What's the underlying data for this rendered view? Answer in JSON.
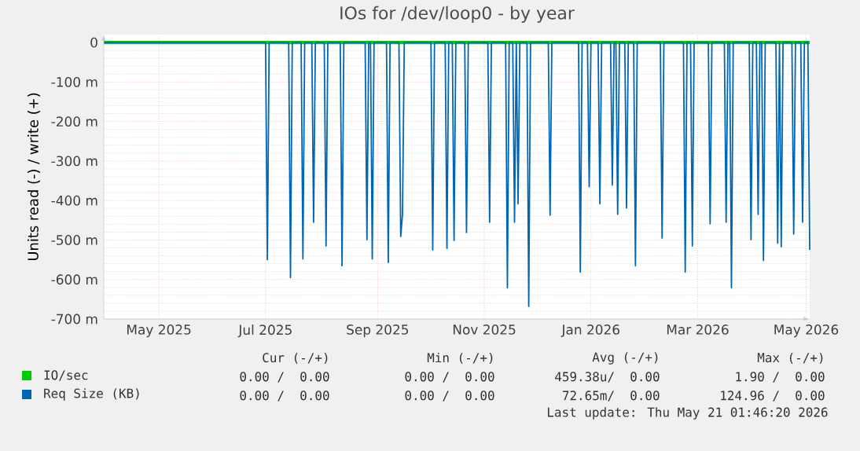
{
  "chart_data": {
    "type": "line",
    "title": "IOs for /dev/loop0 - by year",
    "ylabel": "Units read (-) / write (+)",
    "xlim": [
      "2025-04-19",
      "2026-05-21"
    ],
    "xticks": [
      {
        "value": "2025-05-20",
        "label": "May 2025"
      },
      {
        "value": "2025-07-19",
        "label": "Jul 2025"
      },
      {
        "value": "2025-09-20",
        "label": "Sep 2025"
      },
      {
        "value": "2025-11-19",
        "label": "Nov 2025"
      },
      {
        "value": "2026-01-18",
        "label": "Jan 2026"
      },
      {
        "value": "2026-03-19",
        "label": "Mar 2026"
      },
      {
        "value": "2026-05-19",
        "label": "May 2026"
      }
    ],
    "ylim": [
      -700,
      20
    ],
    "yticks": [
      {
        "value": 0,
        "label": "0"
      },
      {
        "value": -100,
        "label": "-100 m"
      },
      {
        "value": -200,
        "label": "-200 m"
      },
      {
        "value": -300,
        "label": "-300 m"
      },
      {
        "value": -400,
        "label": "-400 m"
      },
      {
        "value": -500,
        "label": "-500 m"
      },
      {
        "value": -600,
        "label": "-600 m"
      },
      {
        "value": -700,
        "label": "-700 m"
      }
    ],
    "grid": true,
    "legend": "bottom",
    "series": [
      {
        "name": "IO/sec",
        "color": "#00cc00",
        "x": [
          "2025-04-19",
          "2026-05-21"
        ],
        "values": [
          0,
          0
        ]
      },
      {
        "name": "Req Size (KB)",
        "color": "#0066b3",
        "x": [
          "2025-04-19",
          "2025-07-19",
          "2025-07-20",
          "2025-07-21",
          "2025-08-01",
          "2025-08-02",
          "2025-08-03",
          "2025-08-08",
          "2025-08-09",
          "2025-08-10",
          "2025-08-14",
          "2025-08-15",
          "2025-08-16",
          "2025-08-21",
          "2025-08-22",
          "2025-08-23",
          "2025-08-30",
          "2025-08-31",
          "2025-09-01",
          "2025-09-13",
          "2025-09-14",
          "2025-09-15",
          "2025-09-16",
          "2025-09-17",
          "2025-09-18",
          "2025-09-25",
          "2025-09-26",
          "2025-09-27",
          "2025-10-02",
          "2025-10-03",
          "2025-10-04",
          "2025-10-05",
          "2025-10-20",
          "2025-10-21",
          "2025-10-22",
          "2025-10-28",
          "2025-10-29",
          "2025-10-30",
          "2025-11-01",
          "2025-11-02",
          "2025-11-03",
          "2025-11-08",
          "2025-11-09",
          "2025-11-10",
          "2025-11-21",
          "2025-11-22",
          "2025-11-23",
          "2025-12-01",
          "2025-12-02",
          "2025-12-03",
          "2025-12-05",
          "2025-12-06",
          "2025-12-07",
          "2025-12-08",
          "2025-12-09",
          "2025-12-13",
          "2025-12-14",
          "2025-12-15",
          "2025-12-25",
          "2025-12-26",
          "2025-12-27",
          "2026-01-11",
          "2026-01-12",
          "2026-01-13",
          "2026-01-16",
          "2026-01-17",
          "2026-01-18",
          "2026-01-22",
          "2026-01-23",
          "2026-01-24",
          "2026-01-29",
          "2026-01-30",
          "2026-01-31",
          "2026-02-01",
          "2026-02-02",
          "2026-02-03",
          "2026-02-06",
          "2026-02-07",
          "2026-02-08",
          "2026-02-11",
          "2026-02-12",
          "2026-02-13",
          "2026-02-26",
          "2026-02-27",
          "2026-02-28",
          "2026-03-11",
          "2026-03-12",
          "2026-03-13",
          "2026-03-15",
          "2026-03-16",
          "2026-03-17",
          "2026-03-25",
          "2026-03-26",
          "2026-03-27",
          "2026-04-03",
          "2026-04-04",
          "2026-04-05",
          "2026-04-06",
          "2026-04-07",
          "2026-04-08",
          "2026-04-17",
          "2026-04-18",
          "2026-04-19",
          "2026-04-21",
          "2026-04-22",
          "2026-04-23",
          "2026-04-24",
          "2026-04-25",
          "2026-04-26",
          "2026-05-02",
          "2026-05-03",
          "2026-05-04",
          "2026-05-05",
          "2026-05-06",
          "2026-05-11",
          "2026-05-12",
          "2026-05-13",
          "2026-05-16",
          "2026-05-17",
          "2026-05-18",
          "2026-05-20",
          "2026-05-21"
        ],
        "values": [
          0,
          0,
          -550,
          0,
          0,
          -595,
          0,
          0,
          -548,
          0,
          0,
          -455,
          0,
          0,
          -515,
          0,
          0,
          -565,
          0,
          0,
          -499,
          0,
          0,
          -548,
          0,
          0,
          -557,
          0,
          0,
          -491,
          -435,
          0,
          0,
          -525,
          0,
          0,
          -521,
          0,
          0,
          -501,
          0,
          0,
          -481,
          0,
          0,
          -455,
          0,
          0,
          -621,
          0,
          0,
          -455,
          0,
          -408,
          0,
          0,
          -668,
          0,
          0,
          -437,
          0,
          0,
          -581,
          0,
          0,
          -365,
          0,
          0,
          -408,
          0,
          0,
          -361,
          0,
          0,
          -435,
          0,
          0,
          -419,
          0,
          0,
          -565,
          0,
          0,
          -495,
          0,
          0,
          -581,
          0,
          0,
          -515,
          0,
          0,
          -459,
          0,
          0,
          -455,
          0,
          0,
          -621,
          0,
          0,
          -499,
          0,
          0,
          -435,
          0,
          0,
          -552,
          0,
          0,
          -508,
          0,
          -517,
          0,
          0,
          -485,
          0,
          0,
          -455,
          0,
          0,
          -525
        ]
      }
    ],
    "annotations": [
      "Cur (-/+)",
      "Min (-/+)",
      "Avg (-/+)",
      "Max (-/+)",
      "0.00 /  0.00",
      "0.00 /  0.00",
      "459.38u/  0.00",
      "1.90 /  0.00",
      "0.00 /  0.00",
      "0.00 /  0.00",
      "72.65m/  0.00",
      "124.96 /  0.00",
      "Last update: Thu May 21 01:46:20 2026"
    ]
  }
}
